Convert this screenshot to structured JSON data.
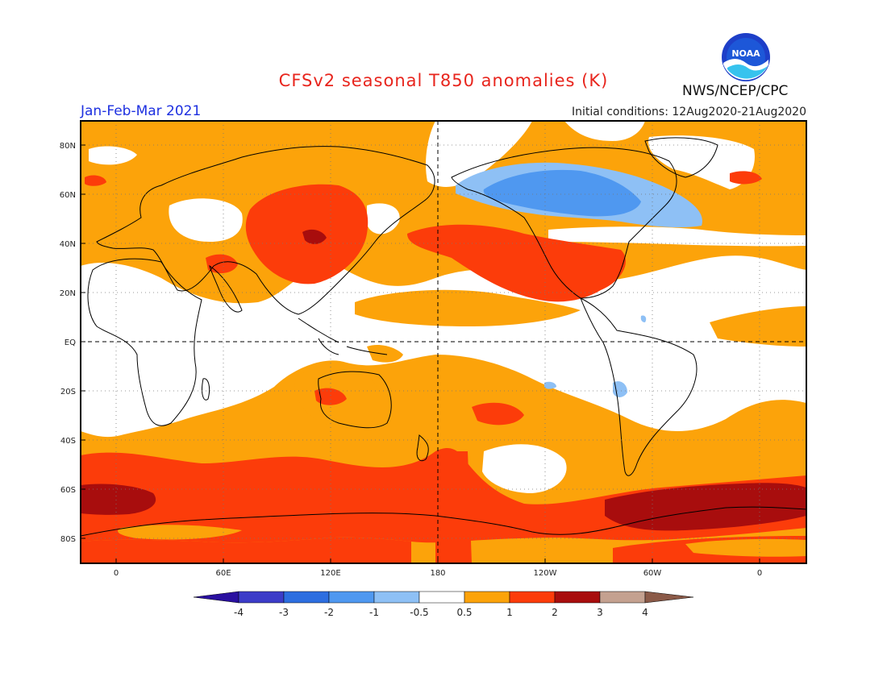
{
  "header": {
    "title": "CFSv2 seasonal T850 anomalies (K)",
    "period": "Jan-Feb-Mar 2021",
    "initial_conditions": "Initial conditions: 12Aug2020-21Aug2020",
    "agency": "NWS/NCEP/CPC",
    "logo_text": "NOAA"
  },
  "axes": {
    "lat_labels": [
      "80N",
      "60N",
      "40N",
      "20N",
      "EQ",
      "20S",
      "40S",
      "60S",
      "80S"
    ],
    "lon_labels": [
      "0",
      "60E",
      "120E",
      "180",
      "120W",
      "60W",
      "0"
    ]
  },
  "colorbar": {
    "labels": [
      "-4",
      "-3",
      "-2",
      "-1",
      "-0.5",
      "0.5",
      "1",
      "2",
      "3",
      "4"
    ],
    "colors": [
      "#2a10a0",
      "#3c3cc8",
      "#2d6ee0",
      "#4f98f0",
      "#8ec0f5",
      "#ffffff",
      "#fca30a",
      "#fc3c0a",
      "#a80d0d",
      "#c4a190",
      "#8b5a48"
    ]
  },
  "palette": {
    "anom_0_5_1": "#fca30a",
    "anom_1_2": "#fc3c0a",
    "anom_2_3": "#a80d0d",
    "anom_m0_5_m1": "#8ec0f5",
    "anom_m1_m2": "#4f98f0",
    "anom_m2_m3": "#2d6ee0"
  }
}
